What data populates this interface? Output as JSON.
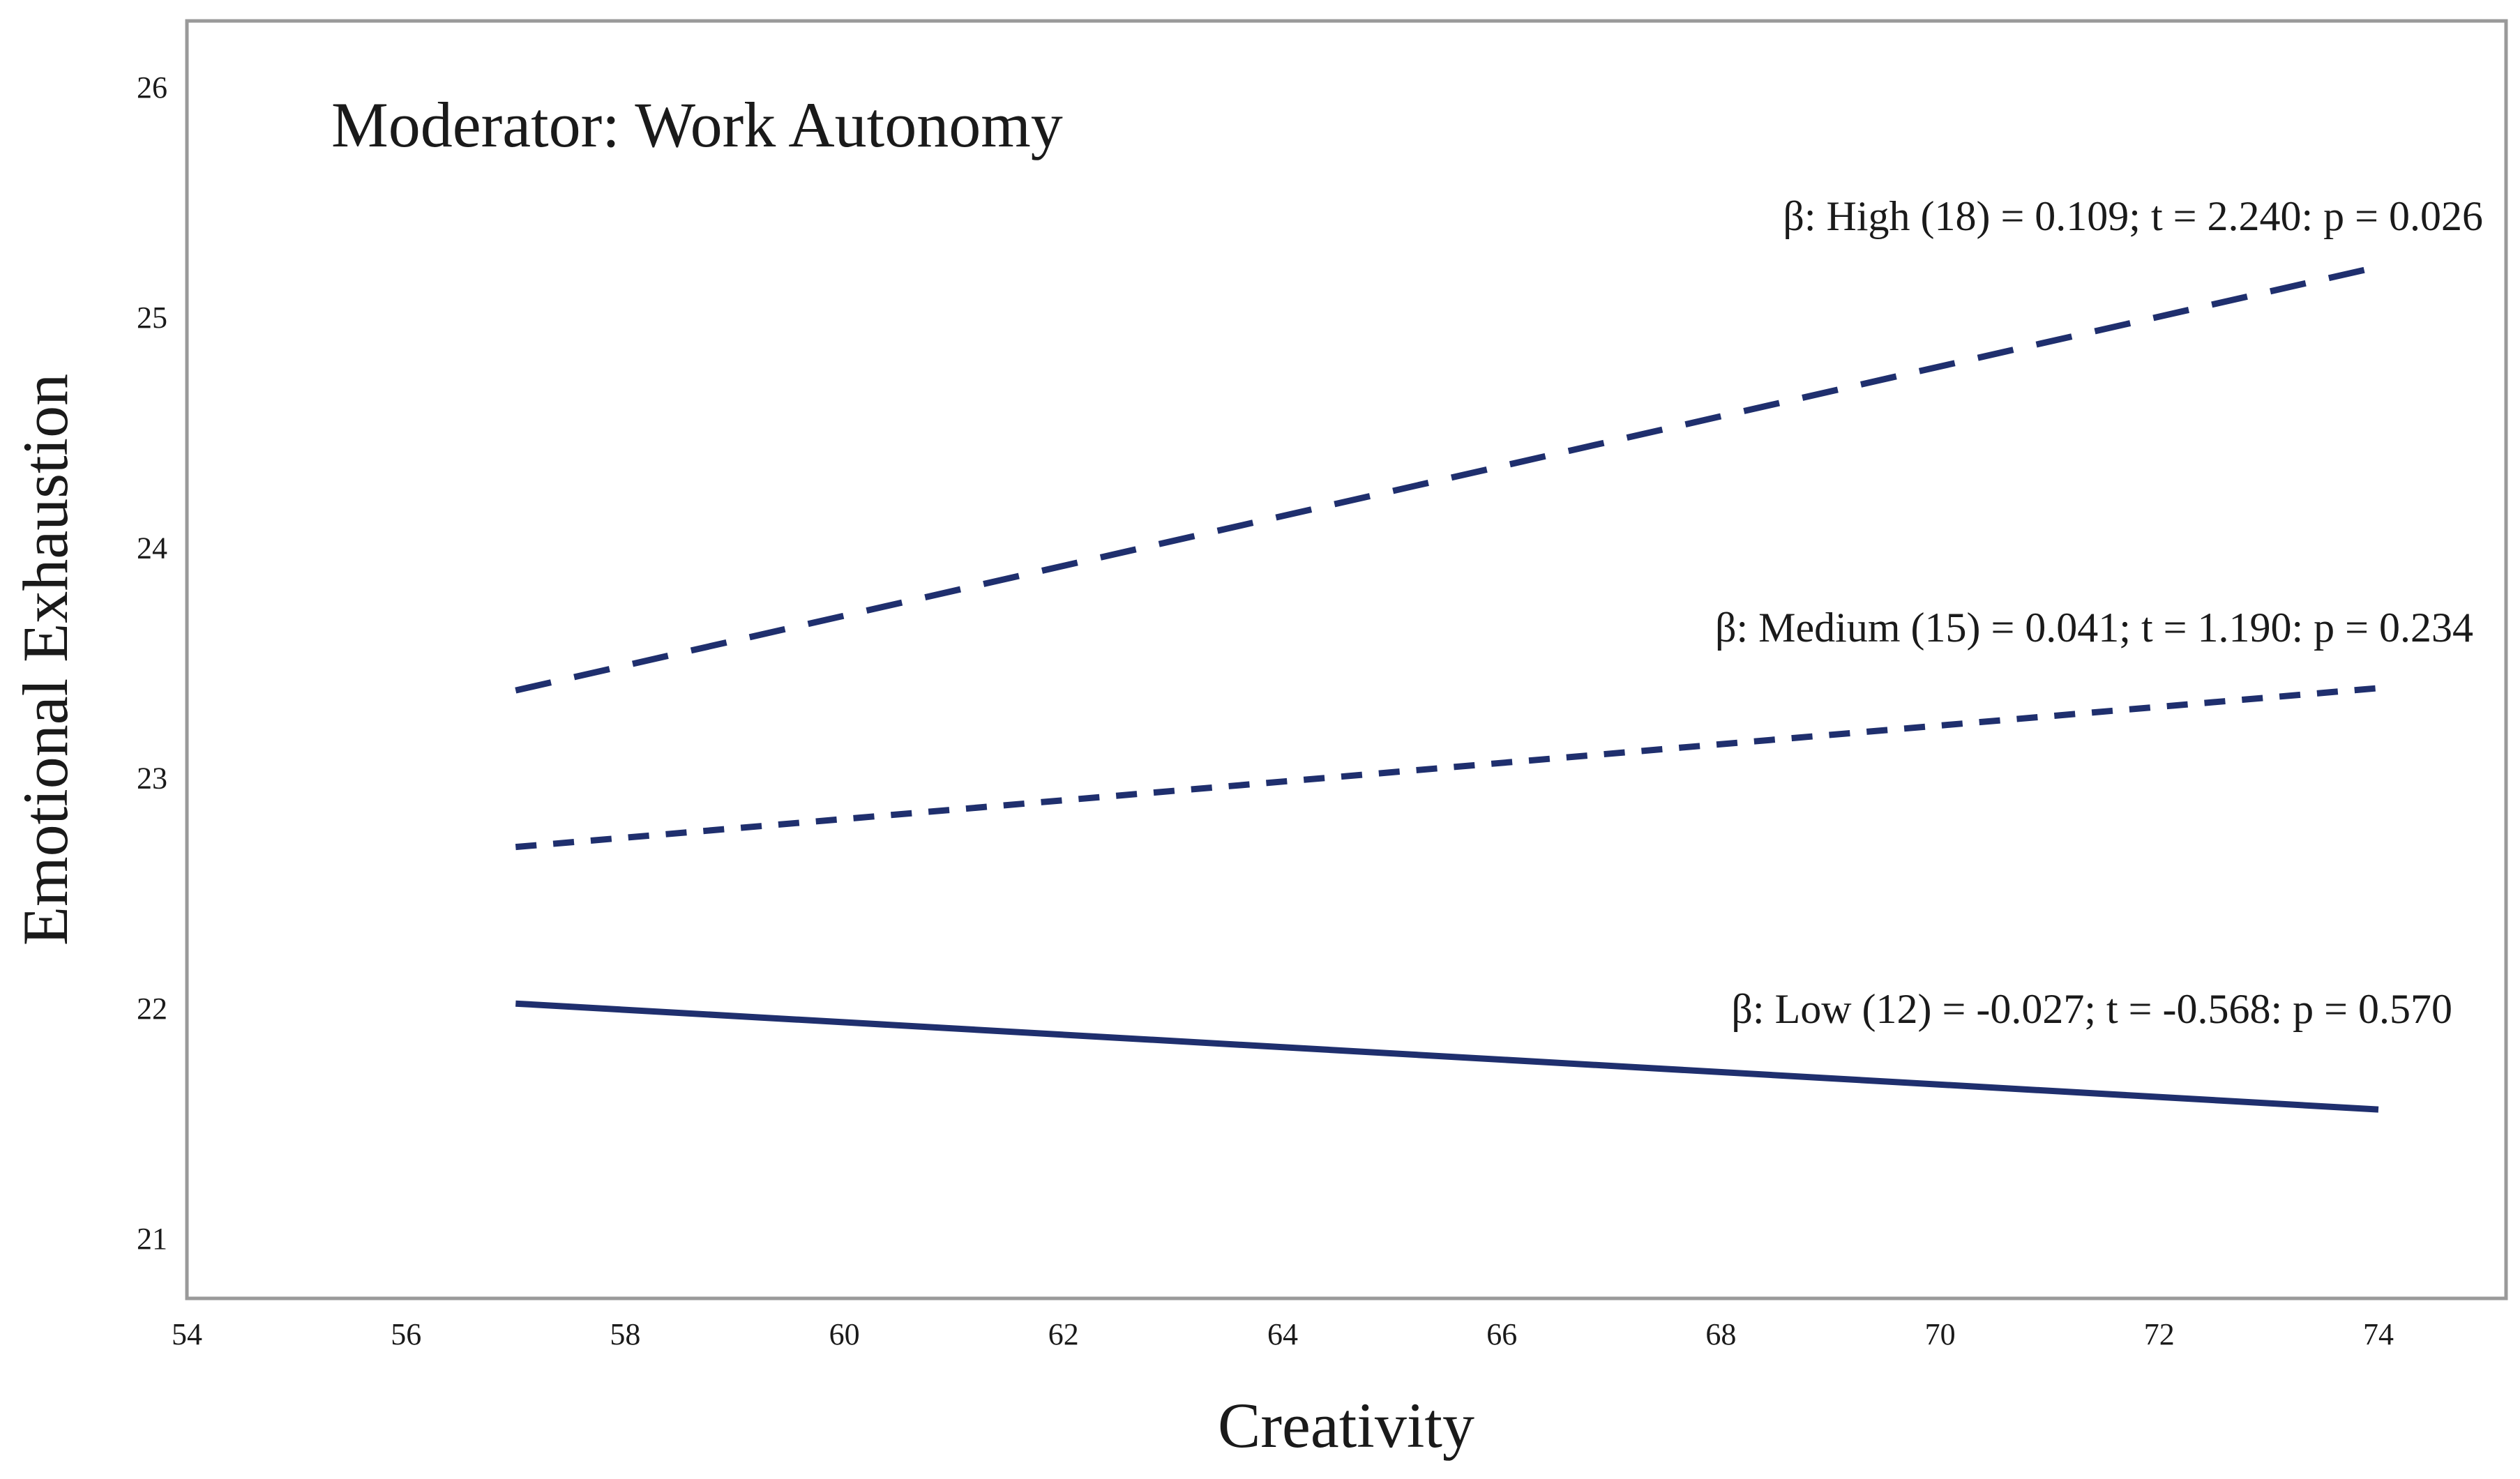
{
  "chart_data": {
    "type": "line",
    "title": "Moderator: Work Autonomy",
    "xlabel": "Creativity",
    "ylabel": "Emotional Exhaustion",
    "xlim": [
      54,
      74
    ],
    "ylim": [
      21,
      26
    ],
    "x_ticks": [
      54,
      56,
      58,
      60,
      62,
      64,
      66,
      68,
      70,
      72,
      74
    ],
    "y_ticks": [
      21,
      22,
      23,
      24,
      25,
      26
    ],
    "grid": false,
    "legend": "none",
    "line_color": "#1f2f6e",
    "axis_color": "#9a9a9a",
    "series": [
      {
        "label": "β: High (18) = 0.109; t = 2.240: p = 0.026",
        "style": "dashed-long",
        "x": [
          57,
          74
        ],
        "y": [
          23.38,
          25.22
        ]
      },
      {
        "label": "β: Medium (15) = 0.041; t = 1.190: p = 0.234",
        "style": "dashed-short",
        "x": [
          57,
          74
        ],
        "y": [
          22.7,
          23.39
        ]
      },
      {
        "label": "β: Low (12) = -0.027; t = -0.568: p = 0.570",
        "style": "solid",
        "x": [
          57,
          74
        ],
        "y": [
          22.02,
          21.56
        ]
      }
    ]
  }
}
